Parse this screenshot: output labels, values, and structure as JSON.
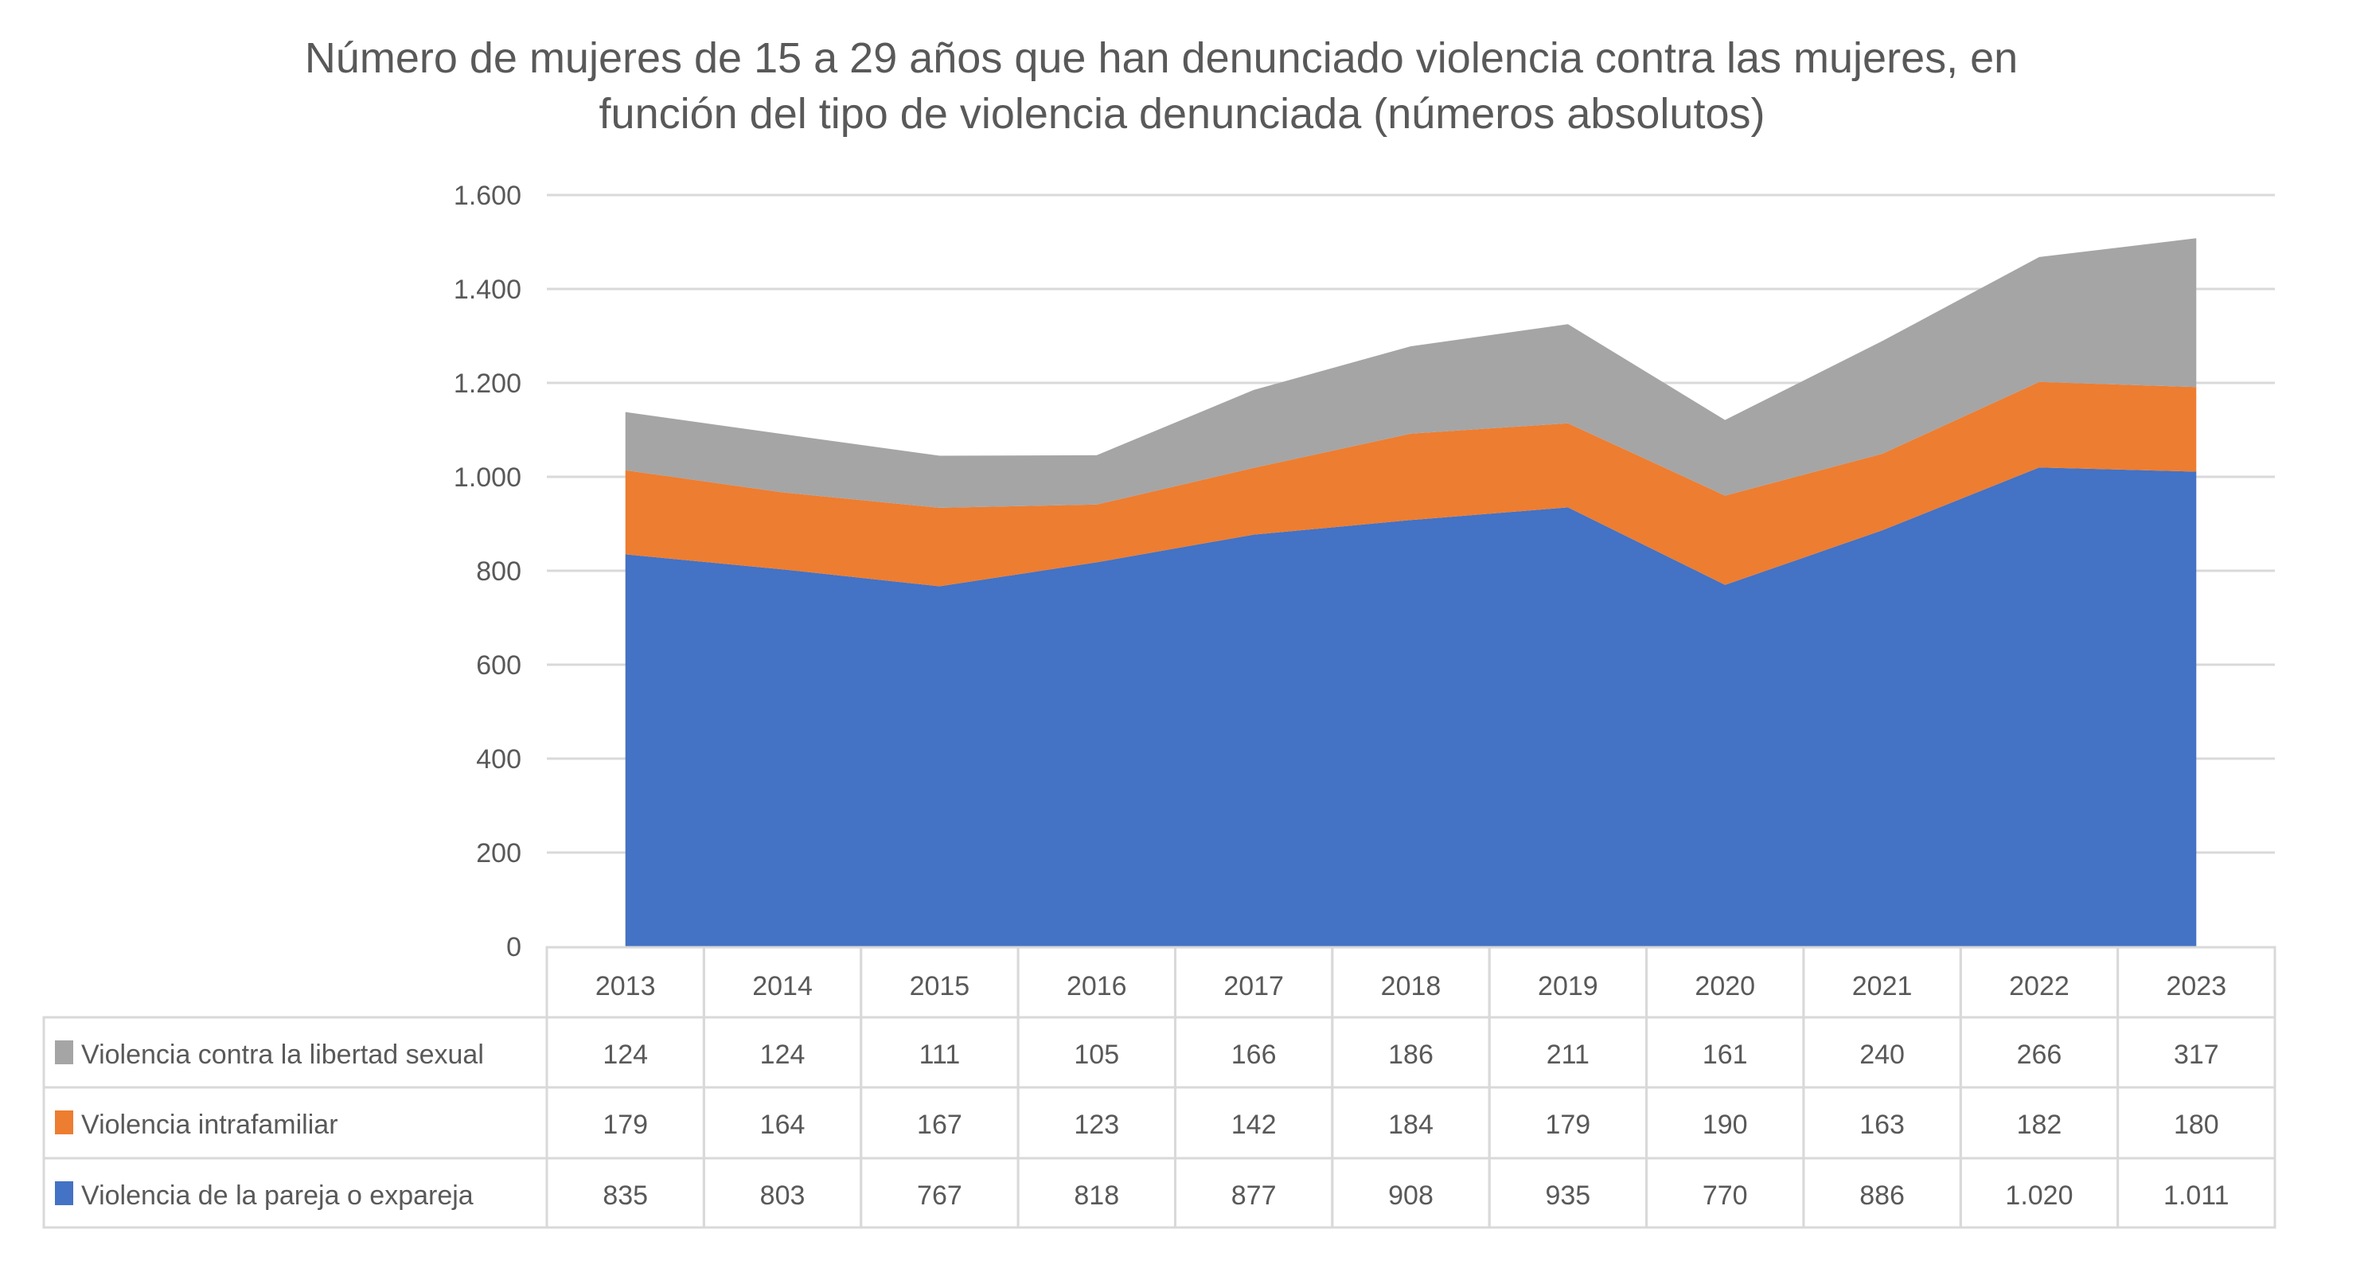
{
  "chart_data": {
    "type": "area",
    "stacked": true,
    "title": "Número de mujeres de 15 a 29 años que han denunciado violencia contra las mujeres, en función del tipo de violencia denunciada (números absolutos)",
    "title_lines": [
      "Número de mujeres de 15 a 29 años que han denunciado violencia contra las mujeres, en",
      "función del tipo de violencia denunciada (números absolutos)"
    ],
    "xlabel": "",
    "ylabel": "",
    "categories": [
      "2013",
      "2014",
      "2015",
      "2016",
      "2017",
      "2018",
      "2019",
      "2020",
      "2021",
      "2022",
      "2023"
    ],
    "ylim": [
      0,
      1600
    ],
    "yticks": [
      0,
      200,
      400,
      600,
      800,
      1000,
      1200,
      1400,
      1600
    ],
    "ytick_labels": [
      "0",
      "200",
      "400",
      "600",
      "800",
      "1.000",
      "1.200",
      "1.400",
      "1.600"
    ],
    "grid": true,
    "legend_placement": "data-table-bottom",
    "series": [
      {
        "name": "Violencia de la pareja o expareja",
        "color": "#4472C4",
        "values": [
          835,
          803,
          767,
          818,
          877,
          908,
          935,
          770,
          886,
          1020,
          1011
        ],
        "labels": [
          "835",
          "803",
          "767",
          "818",
          "877",
          "908",
          "935",
          "770",
          "886",
          "1.020",
          "1.011"
        ]
      },
      {
        "name": "Violencia intrafamiliar",
        "color": "#ED7D31",
        "values": [
          179,
          164,
          167,
          123,
          142,
          184,
          179,
          190,
          163,
          182,
          180
        ],
        "labels": [
          "179",
          "164",
          "167",
          "123",
          "142",
          "184",
          "179",
          "190",
          "163",
          "182",
          "180"
        ]
      },
      {
        "name": "Violencia contra la libertad sexual",
        "color": "#A5A5A5",
        "values": [
          124,
          124,
          111,
          105,
          166,
          186,
          211,
          161,
          240,
          266,
          317
        ],
        "labels": [
          "124",
          "124",
          "111",
          "105",
          "166",
          "186",
          "211",
          "161",
          "240",
          "266",
          "317"
        ]
      }
    ],
    "table_row_order": [
      2,
      1,
      0
    ]
  }
}
